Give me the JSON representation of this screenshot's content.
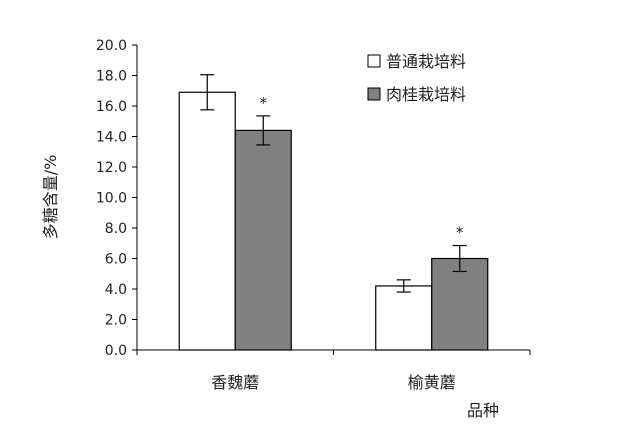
{
  "chart_data": {
    "type": "bar",
    "title": "",
    "xlabel": "品种",
    "ylabel": "多糖含量/%",
    "ylim": [
      0,
      20
    ],
    "yticks": [
      "0.0",
      "2.0",
      "4.0",
      "6.0",
      "8.0",
      "10.0",
      "12.0",
      "14.0",
      "16.0",
      "18.0",
      "20.0"
    ],
    "categories": [
      "香魏蘑",
      "榆黄蘑"
    ],
    "series": [
      {
        "name": "普通栽培料",
        "color": "#ffffff",
        "values": [
          16.9,
          4.2
        ],
        "errors": [
          1.15,
          0.4
        ],
        "significance": [
          "",
          ""
        ]
      },
      {
        "name": "肉桂栽培料",
        "color": "#808080",
        "values": [
          14.4,
          6.0
        ],
        "errors": [
          0.95,
          0.85
        ],
        "significance": [
          "*",
          "*"
        ]
      }
    ],
    "grid": false,
    "legend_position": "top-right"
  }
}
